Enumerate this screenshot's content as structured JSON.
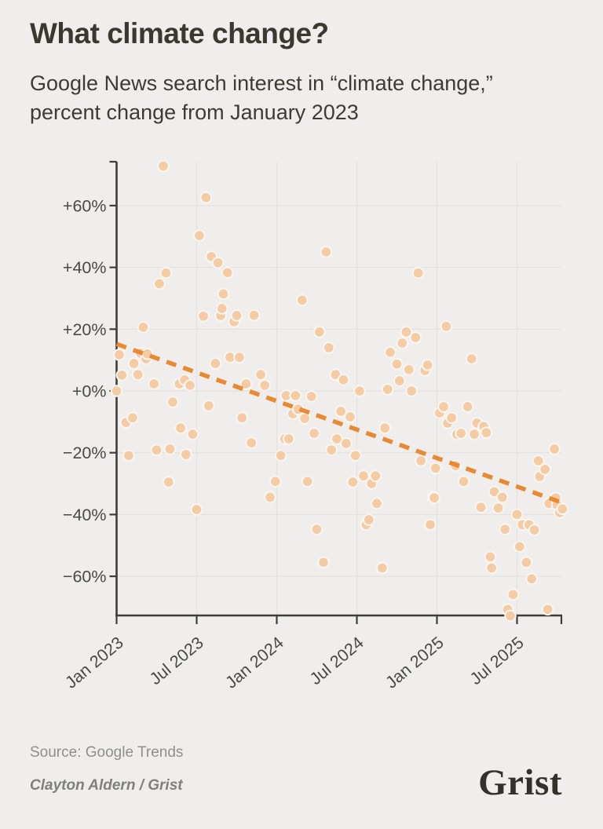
{
  "page": {
    "background": "#efeeec"
  },
  "header": {
    "title": "What climate change?",
    "subtitle_line1": "Google News search interest in “climate change,”",
    "subtitle_line2": "percent change from January 2023"
  },
  "footer": {
    "source": "Source: Google Trends",
    "byline": "Clayton Aldern / Grist",
    "logo": "Grist"
  },
  "chart_data": {
    "type": "scatter",
    "title": "Google News search interest in “climate change,” percent change from January 2023",
    "x_unit": "months since January 2023 (weekly observations)",
    "ylabel": "percent change",
    "xlim": [
      0,
      33.5
    ],
    "ylim": [
      -72.8,
      74.2
    ],
    "grid": true,
    "x_ticks": [
      {
        "m": 0,
        "label": "Jan 2023"
      },
      {
        "m": 6,
        "label": "Jul 2023"
      },
      {
        "m": 12,
        "label": "Jan 2024"
      },
      {
        "m": 18,
        "label": "Jul 2024"
      },
      {
        "m": 24,
        "label": "Jan 2025"
      },
      {
        "m": 30,
        "label": "Jul 2025"
      }
    ],
    "y_ticks": [
      {
        "v": 60,
        "label": "+60%"
      },
      {
        "v": 40,
        "label": "+40%"
      },
      {
        "v": 20,
        "label": "+20%"
      },
      {
        "v": 0,
        "label": "+0%"
      },
      {
        "v": -20,
        "label": "−20%"
      },
      {
        "v": -40,
        "label": "−40%"
      },
      {
        "v": -60,
        "label": "−60%"
      }
    ],
    "colors": {
      "point_fill": "#f4cba3",
      "point_stroke": "#f8f6f2",
      "trend": "#e88a33",
      "grid": "#e3e2de",
      "axis": "#3e3e38",
      "tick_label": "#4a4a44"
    },
    "trend": {
      "style": "dashed",
      "start": [
        0,
        15.2
      ],
      "end": [
        33.15,
        -35.8
      ]
    },
    "points": [
      [
        0,
        0
      ],
      [
        0.2,
        11.7
      ],
      [
        0.4,
        5.1
      ],
      [
        0.7,
        -10.2
      ],
      [
        0.9,
        -20.9
      ],
      [
        1.2,
        -8.7
      ],
      [
        1.3,
        8.9
      ],
      [
        1.6,
        5.3
      ],
      [
        1.8,
        12.2
      ],
      [
        2,
        20.6
      ],
      [
        2.2,
        10.4
      ],
      [
        2.3,
        12
      ],
      [
        2.8,
        2.3
      ],
      [
        3,
        -19.1
      ],
      [
        3.2,
        34.7
      ],
      [
        3.5,
        72.8
      ],
      [
        3.7,
        38.2
      ],
      [
        3.9,
        -29.5
      ],
      [
        4,
        -18.8
      ],
      [
        4.2,
        -3.6
      ],
      [
        4.7,
        2.3
      ],
      [
        4.8,
        -12
      ],
      [
        5.1,
        3.6
      ],
      [
        5.2,
        -20.6
      ],
      [
        5.5,
        1.8
      ],
      [
        5.7,
        -14
      ],
      [
        6,
        -38.4
      ],
      [
        6.2,
        50.3
      ],
      [
        6.5,
        24.2
      ],
      [
        6.7,
        62.6
      ],
      [
        6.9,
        -4.8
      ],
      [
        7.1,
        43.5
      ],
      [
        7.4,
        8.9
      ],
      [
        7.6,
        41.5
      ],
      [
        7.8,
        24.4
      ],
      [
        7.9,
        26.7
      ],
      [
        8,
        31.4
      ],
      [
        8.3,
        38.3
      ],
      [
        8.5,
        10.9
      ],
      [
        8.8,
        22.4
      ],
      [
        9,
        24.4
      ],
      [
        9.2,
        10.9
      ],
      [
        9.4,
        -8.7
      ],
      [
        9.7,
        2.3
      ],
      [
        10.1,
        -16.8
      ],
      [
        10.3,
        24.5
      ],
      [
        10.8,
        5.3
      ],
      [
        11.1,
        1.8
      ],
      [
        11.5,
        -34.4
      ],
      [
        11.9,
        -29.3
      ],
      [
        12.3,
        -20.9
      ],
      [
        12.6,
        -15.5
      ],
      [
        12.7,
        -1.5
      ],
      [
        12.9,
        -15.5
      ],
      [
        13.2,
        -7.4
      ],
      [
        13.4,
        -1.5
      ],
      [
        13.6,
        -5.9
      ],
      [
        13.9,
        29.4
      ],
      [
        14.1,
        -8.9
      ],
      [
        14.3,
        -29.3
      ],
      [
        14.6,
        -1.8
      ],
      [
        14.8,
        -13.7
      ],
      [
        15,
        -44.8
      ],
      [
        15.2,
        19.1
      ],
      [
        15.5,
        -55.5
      ],
      [
        15.7,
        45
      ],
      [
        15.9,
        14
      ],
      [
        16.1,
        -19.1
      ],
      [
        16.4,
        5.3
      ],
      [
        16.5,
        -15.5
      ],
      [
        16.8,
        -6.6
      ],
      [
        17,
        3.6
      ],
      [
        17.2,
        -17
      ],
      [
        17.5,
        -8.4
      ],
      [
        17.7,
        -29.5
      ],
      [
        17.9,
        -20.9
      ],
      [
        18.2,
        0
      ],
      [
        18.5,
        -27.5
      ],
      [
        18.7,
        -43.3
      ],
      [
        18.9,
        -41.7
      ],
      [
        19.1,
        -30
      ],
      [
        19.4,
        -27.5
      ],
      [
        19.5,
        -36.4
      ],
      [
        19.9,
        -57.3
      ],
      [
        20.1,
        -12
      ],
      [
        20.3,
        0.5
      ],
      [
        20.5,
        12.5
      ],
      [
        21,
        8.7
      ],
      [
        21.2,
        3.3
      ],
      [
        21.4,
        15.5
      ],
      [
        21.7,
        19.1
      ],
      [
        21.9,
        6.9
      ],
      [
        22.1,
        0
      ],
      [
        22.4,
        17.3
      ],
      [
        22.6,
        38.2
      ],
      [
        22.8,
        -22.6
      ],
      [
        23.1,
        6.6
      ],
      [
        23.3,
        8.4
      ],
      [
        23.5,
        -43.3
      ],
      [
        23.7,
        -34.4
      ],
      [
        23.8,
        -34.6
      ],
      [
        23.9,
        -25
      ],
      [
        24.2,
        -7.1
      ],
      [
        24.5,
        -5.1
      ],
      [
        24.7,
        20.9
      ],
      [
        24.8,
        -10.4
      ],
      [
        25.1,
        -8.7
      ],
      [
        25.4,
        -24.2
      ],
      [
        25.5,
        -14
      ],
      [
        25.8,
        -13.7
      ],
      [
        26,
        -29.3
      ],
      [
        26.3,
        -5.1
      ],
      [
        26.6,
        10.4
      ],
      [
        26.8,
        -14
      ],
      [
        27,
        -10.4
      ],
      [
        27.3,
        -37.7
      ],
      [
        27.5,
        -11.5
      ],
      [
        27.7,
        -13.5
      ],
      [
        28,
        -53.7
      ],
      [
        28.1,
        -57.3
      ],
      [
        28.3,
        -32.6
      ],
      [
        28.6,
        -37.9
      ],
      [
        28.9,
        -34.4
      ],
      [
        29.1,
        -44.8
      ],
      [
        29.3,
        -70.7
      ],
      [
        29.5,
        -72.8
      ],
      [
        29.7,
        -65.9
      ],
      [
        30,
        -40
      ],
      [
        30.2,
        -50.4
      ],
      [
        30.4,
        -43.3
      ],
      [
        30.7,
        -55.5
      ],
      [
        30.9,
        -43.3
      ],
      [
        31.1,
        -60.8
      ],
      [
        31.3,
        -45
      ],
      [
        31.6,
        -22.6
      ],
      [
        31.7,
        -27.7
      ],
      [
        32.1,
        -25.4
      ],
      [
        32.3,
        -70.7
      ],
      [
        32.4,
        -36.4
      ],
      [
        32.8,
        -18.8
      ],
      [
        32.9,
        -34.6
      ],
      [
        33,
        -36.9
      ],
      [
        33.2,
        -39.4
      ],
      [
        33.4,
        -38.2
      ]
    ]
  }
}
